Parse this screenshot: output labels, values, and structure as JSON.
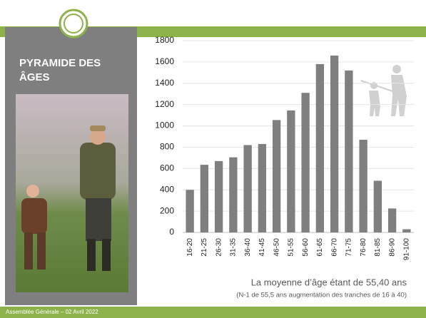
{
  "chart_data": {
    "type": "bar",
    "title": "PYRAMIDE DES ÂGES",
    "categories": [
      "16-20",
      "21-25",
      "26-30",
      "31-35",
      "36-40",
      "41-45",
      "46-50",
      "51-55",
      "56-60",
      "61-65",
      "66-70",
      "71-75",
      "76-80",
      "81-85",
      "86-90",
      "91-100"
    ],
    "values": [
      400,
      635,
      670,
      705,
      820,
      830,
      1055,
      1145,
      1310,
      1580,
      1660,
      1520,
      870,
      485,
      225,
      30
    ],
    "color": "#7f7f7f",
    "ylim": [
      0,
      1800
    ],
    "yticks": [
      0,
      200,
      400,
      600,
      800,
      1000,
      1200,
      1400,
      1600,
      1800
    ],
    "grid": true,
    "annotations": [
      "La moyenne d’âge étant de 55,40 ans",
      "(N-1 de 55,5 ans augmentation des tranches de 16 à 40)"
    ]
  },
  "footer": "Assemblée Générale – 02 Avril 2022"
}
